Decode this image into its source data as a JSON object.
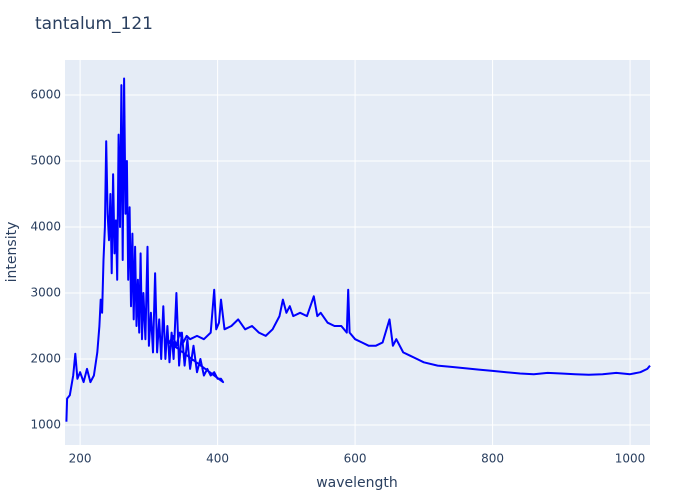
{
  "chart_data": {
    "type": "line",
    "title": "tantalum_121",
    "x_label": "wavelength",
    "y_label": "intensity",
    "series": [
      {
        "color": "#0000ff",
        "x": [
          180,
          181,
          185,
          190,
          193,
          196,
          200,
          205,
          210,
          215,
          220,
          225,
          228,
          230,
          232,
          234,
          236,
          238,
          240,
          242,
          244,
          246,
          248,
          250,
          252,
          254,
          256,
          258,
          260,
          262,
          264,
          266,
          268,
          270,
          272,
          274,
          276,
          278,
          280,
          282,
          284,
          286,
          288,
          290,
          292,
          295,
          298,
          300,
          303,
          306,
          309,
          312,
          315,
          318,
          321,
          324,
          327,
          330,
          333,
          336,
          340,
          344,
          348,
          352,
          356,
          360,
          365,
          370,
          375,
          380,
          385,
          390,
          395,
          400,
          405,
          408,
          330,
          335,
          340,
          345,
          350,
          355,
          360,
          370,
          380,
          390,
          395,
          398,
          402,
          405,
          410,
          420,
          430,
          440,
          450,
          460,
          470,
          480,
          490,
          495,
          500,
          505,
          510,
          520,
          530,
          540,
          545,
          550,
          560,
          570,
          580,
          588,
          590,
          592,
          600,
          610,
          620,
          630,
          640,
          650,
          655,
          660,
          670,
          680,
          690,
          700,
          720,
          740,
          760,
          780,
          800,
          820,
          840,
          860,
          880,
          900,
          920,
          940,
          960,
          980,
          1000,
          1015,
          1025,
          1029
        ],
        "values": [
          1050,
          1400,
          1450,
          1750,
          2080,
          1700,
          1800,
          1650,
          1850,
          1650,
          1750,
          2100,
          2500,
          2900,
          2700,
          3500,
          4000,
          5300,
          4200,
          3800,
          4500,
          3300,
          4800,
          3600,
          4100,
          3200,
          5400,
          4000,
          6150,
          3500,
          6250,
          4200,
          5000,
          3200,
          4300,
          2800,
          3900,
          2600,
          3700,
          2500,
          3200,
          2400,
          3600,
          2300,
          3000,
          2300,
          3700,
          2200,
          2700,
          2100,
          3300,
          2100,
          2600,
          2000,
          2800,
          2000,
          2500,
          1950,
          2400,
          2000,
          3000,
          1900,
          2400,
          1900,
          2300,
          1850,
          2200,
          1800,
          2000,
          1750,
          1850,
          1750,
          1800,
          1700,
          1700,
          1650,
          2250,
          2350,
          2200,
          2400,
          2250,
          2350,
          2300,
          2350,
          2300,
          2400,
          3050,
          2450,
          2550,
          2900,
          2450,
          2500,
          2600,
          2450,
          2500,
          2400,
          2350,
          2450,
          2650,
          2900,
          2700,
          2800,
          2650,
          2700,
          2650,
          2950,
          2650,
          2700,
          2550,
          2500,
          2500,
          2400,
          3050,
          2400,
          2300,
          2250,
          2200,
          2200,
          2250,
          2600,
          2200,
          2300,
          2100,
          2050,
          2000,
          1950,
          1900,
          1880,
          1860,
          1840,
          1820,
          1800,
          1780,
          1770,
          1790,
          1780,
          1770,
          1760,
          1770,
          1790,
          1770,
          1800,
          1850,
          1900
        ]
      }
    ],
    "xlim": [
      178,
      1029
    ],
    "ylim": [
      697,
      6530
    ],
    "xticks": [
      200,
      400,
      600,
      800,
      1000
    ],
    "yticks": [
      1000,
      2000,
      3000,
      4000,
      5000,
      6000
    ],
    "grid": true
  }
}
